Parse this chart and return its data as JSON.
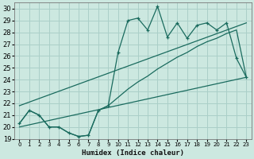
{
  "xlabel": "Humidex (Indice chaleur)",
  "background_color": "#cce8e0",
  "grid_color": "#aacfc8",
  "line_color": "#1a6b5e",
  "xlim": [
    -0.5,
    23.5
  ],
  "ylim": [
    19,
    30.5
  ],
  "xticks": [
    0,
    1,
    2,
    3,
    4,
    5,
    6,
    7,
    8,
    9,
    10,
    11,
    12,
    13,
    14,
    15,
    16,
    17,
    18,
    19,
    20,
    21,
    22,
    23
  ],
  "yticks": [
    19,
    20,
    21,
    22,
    23,
    24,
    25,
    26,
    27,
    28,
    29,
    30
  ],
  "series1_x": [
    0,
    1,
    2,
    3,
    4,
    5,
    6,
    7,
    8,
    9,
    10,
    11,
    12,
    13,
    14,
    15,
    16,
    17,
    18,
    19,
    20,
    21,
    22,
    23
  ],
  "series1_y": [
    20.3,
    21.4,
    21.0,
    20.0,
    20.0,
    19.5,
    19.2,
    19.3,
    21.4,
    21.8,
    26.3,
    29.0,
    29.2,
    28.2,
    30.2,
    27.6,
    28.8,
    27.5,
    28.6,
    28.8,
    28.2,
    28.8,
    25.8,
    24.2
  ],
  "series2_x": [
    0,
    23
  ],
  "series2_y": [
    21.8,
    28.8
  ],
  "series3_x": [
    0,
    23
  ],
  "series3_y": [
    20.0,
    24.2
  ],
  "series4_x": [
    0,
    1,
    2,
    3,
    4,
    5,
    6,
    7,
    8,
    9,
    10,
    11,
    12,
    13,
    14,
    15,
    16,
    17,
    18,
    19,
    20,
    21,
    22,
    23
  ],
  "series4_y": [
    20.3,
    21.4,
    21.0,
    20.0,
    20.0,
    19.5,
    19.2,
    19.3,
    21.4,
    21.8,
    22.5,
    23.2,
    23.8,
    24.3,
    24.9,
    25.4,
    25.9,
    26.3,
    26.8,
    27.2,
    27.5,
    27.9,
    28.2,
    24.2
  ]
}
